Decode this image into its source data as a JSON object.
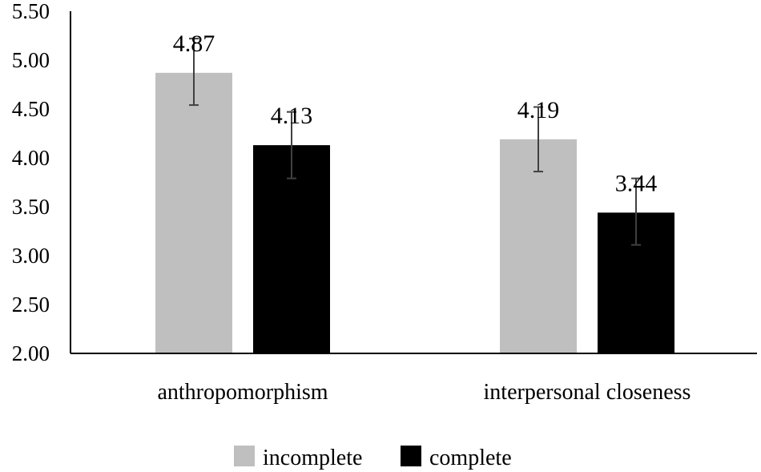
{
  "chart_data": {
    "type": "bar",
    "categories": [
      "anthropomorphism",
      "interpersonal closeness"
    ],
    "series": [
      {
        "name": "incomplete",
        "color": "#bfbfbf",
        "values": [
          4.87,
          4.19
        ],
        "error_low": [
          4.54,
          3.86
        ],
        "error_high": [
          5.22,
          4.52
        ],
        "value_labels": [
          "4.87",
          "4.19"
        ]
      },
      {
        "name": "complete",
        "color": "#000000",
        "values": [
          4.13,
          3.44
        ],
        "error_low": [
          3.79,
          3.11
        ],
        "error_high": [
          4.47,
          3.79
        ],
        "value_labels": [
          "4.13",
          "3.44"
        ]
      }
    ],
    "ylim": [
      2.0,
      5.5
    ],
    "yticks": [
      "2.00",
      "2.50",
      "3.00",
      "3.50",
      "4.00",
      "4.50",
      "5.00",
      "5.50"
    ],
    "grid": false,
    "legend_position": "bottom",
    "title": "",
    "xlabel": "",
    "ylabel": ""
  }
}
